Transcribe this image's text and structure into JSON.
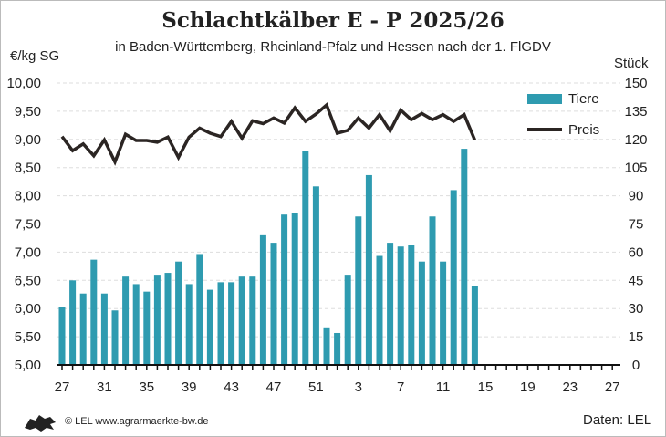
{
  "chart_data": {
    "type": "bar+line",
    "title": "Schlachtkälber E - P 2025/26",
    "subtitle": "in Baden-Württemberg, Rheinland-Pfalz und Hessen nach der 1. FlGDV",
    "ylabel": "€/kg SG",
    "y2label": "Stück",
    "ylim": [
      5,
      10
    ],
    "y2lim": [
      0,
      150
    ],
    "yticks": [
      "5,00",
      "5,50",
      "6,00",
      "6,50",
      "7,00",
      "7,50",
      "8,00",
      "8,50",
      "9,00",
      "9,50",
      "10,00"
    ],
    "y2ticks": [
      "0",
      "15",
      "30",
      "45",
      "60",
      "75",
      "90",
      "105",
      "120",
      "135",
      "150"
    ],
    "xticklabels": [
      "27",
      "31",
      "35",
      "39",
      "43",
      "47",
      "51",
      "3",
      "7",
      "11",
      "15",
      "19",
      "23",
      "27"
    ],
    "weeks": [
      27,
      28,
      29,
      30,
      31,
      32,
      33,
      34,
      35,
      36,
      37,
      38,
      39,
      40,
      41,
      42,
      43,
      44,
      45,
      46,
      47,
      48,
      49,
      50,
      51,
      52,
      1,
      2,
      3,
      4,
      5,
      6,
      7,
      8,
      9,
      10,
      11,
      12,
      13,
      14
    ],
    "grid": true,
    "legend_position": "top-right",
    "series": [
      {
        "name": "Tiere",
        "type": "bar",
        "axis": "right",
        "color": "#2e9bb0",
        "values": [
          31,
          45,
          38,
          56,
          38,
          29,
          47,
          43,
          39,
          48,
          49,
          55,
          43,
          59,
          40,
          44,
          44,
          47,
          47,
          69,
          65,
          80,
          81,
          114,
          95,
          20,
          17,
          48,
          79,
          101,
          58,
          65,
          63,
          64,
          55,
          79,
          55,
          93,
          115,
          42
        ]
      },
      {
        "name": "Preis",
        "type": "line",
        "axis": "left",
        "color": "#2b2523",
        "values": [
          9.05,
          8.8,
          8.92,
          8.71,
          8.99,
          8.6,
          9.09,
          8.98,
          8.98,
          8.95,
          9.04,
          8.68,
          9.04,
          9.2,
          9.11,
          9.05,
          9.32,
          9.02,
          9.33,
          9.28,
          9.38,
          9.29,
          9.56,
          9.32,
          9.45,
          9.61,
          9.11,
          9.16,
          9.38,
          9.2,
          9.44,
          9.15,
          9.52,
          9.35,
          9.46,
          9.35,
          9.44,
          9.32,
          9.44,
          8.99
        ]
      }
    ]
  },
  "footer": {
    "copyright": "© LEL www.agrarmaerkte-bw.de",
    "source": "Daten: LEL"
  }
}
